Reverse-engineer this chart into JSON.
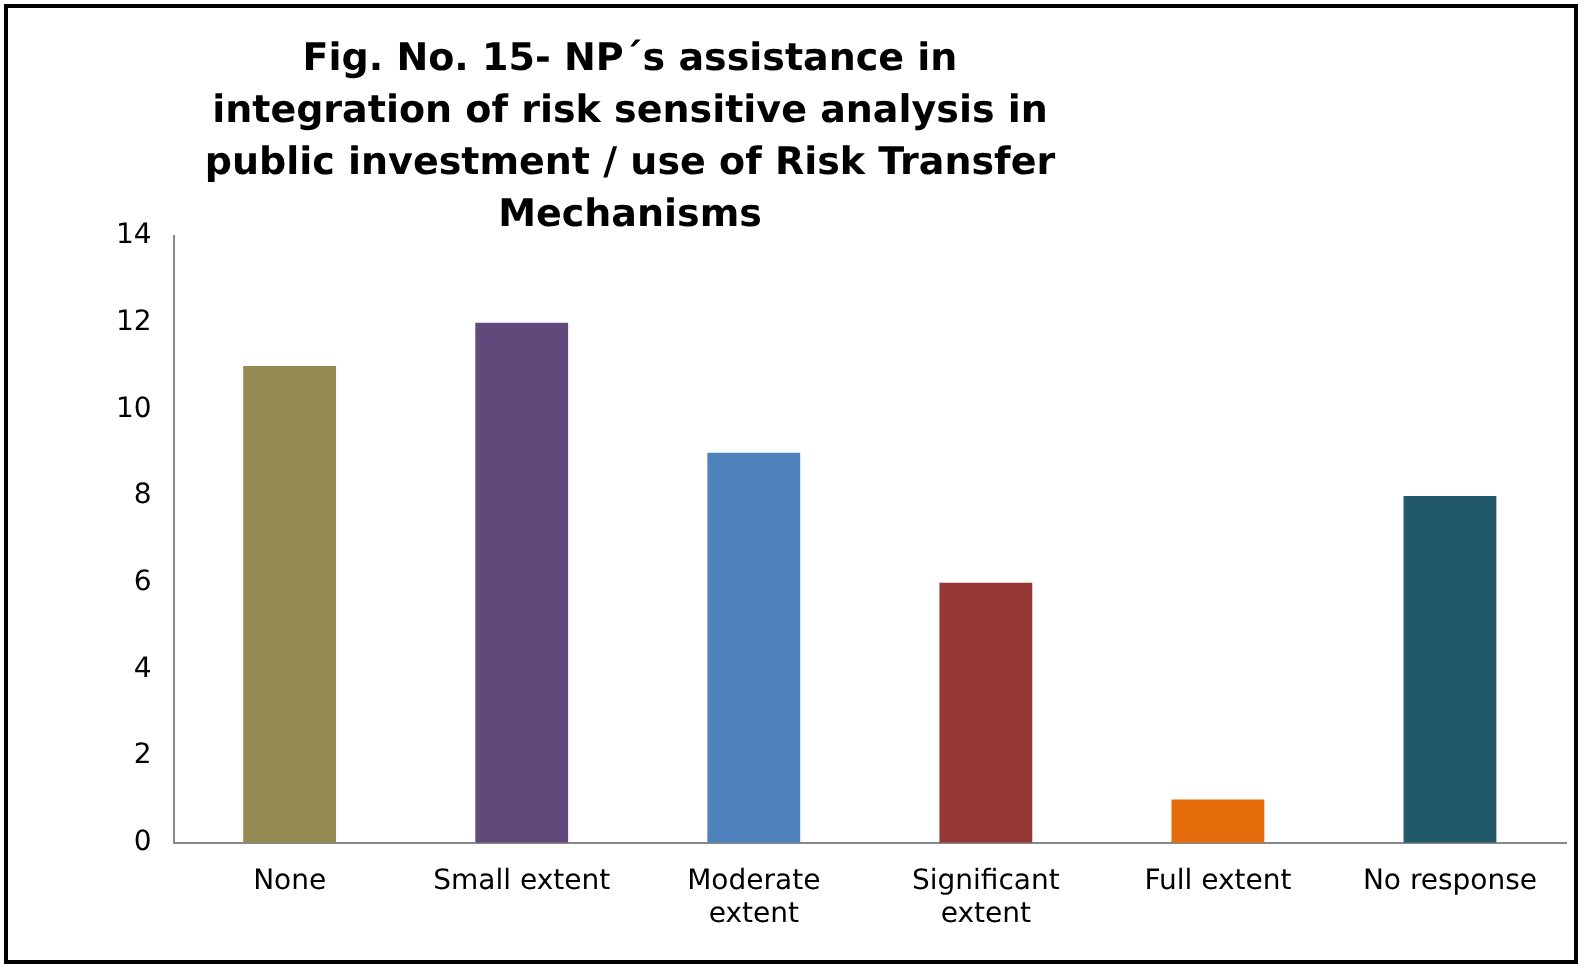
{
  "chart_data": {
    "type": "bar",
    "title": "Fig. No. 15- NP´s assistance in integration of risk sensitive analysis in public investment / use of Risk Transfer Mechanisms",
    "categories": [
      "None",
      "Small extent",
      "Moderate extent",
      "Significant extent",
      "Full extent",
      "No response"
    ],
    "values": [
      11,
      12,
      9,
      6,
      1,
      8
    ],
    "colors": [
      "#948a54",
      "#604a7b",
      "#4f81bd",
      "#953735",
      "#e46c0a",
      "#215968"
    ],
    "ylim": [
      0,
      14
    ],
    "yticks": [
      0,
      2,
      4,
      6,
      8,
      10,
      12,
      14
    ],
    "grid": false,
    "legend": false
  }
}
